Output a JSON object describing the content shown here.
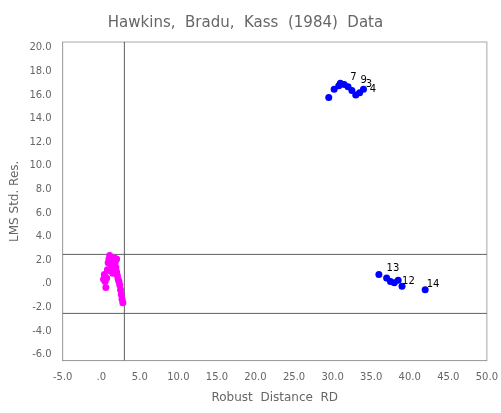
{
  "chart_data": {
    "type": "scatter",
    "title": "Hawkins,  Bradu,  Kass  (1984)  Data",
    "xlabel": "Robust  Distance  RD",
    "ylabel": "LMS Std. Res.",
    "grid": false,
    "xlim": [
      -5,
      50
    ],
    "ylim": [
      -6.5,
      20.5
    ],
    "xticks": [
      {
        "value": -5.0,
        "label": "-5.0"
      },
      {
        "value": 0.0,
        "label": ".0"
      },
      {
        "value": 5.0,
        "label": "5.0"
      },
      {
        "value": 10.0,
        "label": "10.0"
      },
      {
        "value": 15.0,
        "label": "15.0"
      },
      {
        "value": 20.0,
        "label": "20.0"
      },
      {
        "value": 25.0,
        "label": "25.0"
      },
      {
        "value": 30.0,
        "label": "30.0"
      },
      {
        "value": 35.0,
        "label": "35.0"
      },
      {
        "value": 40.0,
        "label": "40.0"
      },
      {
        "value": 45.0,
        "label": "45.0"
      },
      {
        "value": 50.0,
        "label": "50.0"
      }
    ],
    "yticks": [
      {
        "value": -6.0,
        "label": "-6.0"
      },
      {
        "value": -4.0,
        "label": "-4.0"
      },
      {
        "value": -2.0,
        "label": "-2.0"
      },
      {
        "value": 0.0,
        "label": ".0"
      },
      {
        "value": 2.0,
        "label": "2.0"
      },
      {
        "value": 4.0,
        "label": "4.0"
      },
      {
        "value": 6.0,
        "label": "6.0"
      },
      {
        "value": 8.0,
        "label": "8.0"
      },
      {
        "value": 10.0,
        "label": "10.0"
      },
      {
        "value": 12.0,
        "label": "12.0"
      },
      {
        "value": 14.0,
        "label": "14.0"
      },
      {
        "value": 16.0,
        "label": "16.0"
      },
      {
        "value": 18.0,
        "label": "18.0"
      },
      {
        "value": 20.0,
        "label": "20.0"
      }
    ],
    "series": [
      {
        "color": "#FF00FF",
        "x": [
          0.5,
          0.7,
          0.8,
          0.9,
          1.0,
          1.1,
          1.2,
          1.3,
          1.4,
          1.5,
          1.6,
          1.7,
          1.8,
          1.9,
          2.0,
          2.1,
          2.2,
          2.3,
          2.4,
          2.5,
          2.6,
          2.7,
          2.8,
          0.6,
          1.5,
          1.2,
          0.4,
          0.3,
          2.0
        ],
        "values": [
          0.2,
          0.5,
          1.2,
          1.8,
          2.1,
          2.4,
          2.0,
          1.5,
          1.3,
          1.6,
          1.9,
          2.2,
          1.8,
          1.4,
          1.0,
          0.7,
          0.4,
          0.2,
          -0.1,
          -0.5,
          -0.9,
          -1.3,
          -1.6,
          -0.3,
          0.9,
          1.1,
          0.8,
          0.4,
          2.1
        ]
      },
      {
        "color": "#0000FF",
        "x": [
          29.5,
          30.2,
          30.8,
          31.0,
          31.5,
          32.0,
          32.5,
          33.0,
          33.5,
          34.0
        ],
        "values": [
          15.8,
          16.5,
          16.8,
          17.0,
          16.9,
          16.7,
          16.4,
          16.0,
          16.2,
          16.5
        ]
      },
      {
        "color": "#0000FF",
        "x": [
          36.0,
          37.0,
          37.5,
          38.0,
          38.5,
          39.0,
          42.0
        ],
        "values": [
          0.8,
          0.5,
          0.2,
          0.1,
          0.3,
          -0.2,
          -0.5
        ]
      }
    ],
    "reference_lines": [
      {
        "x": 3.0,
        "color": "#606060"
      },
      {
        "y": 2.5,
        "color": "#606060"
      },
      {
        "y": -2.5,
        "color": "#606060"
      }
    ],
    "annotations": [
      {
        "text": "7",
        "x": 32.3,
        "y": 17.3
      },
      {
        "text": "9",
        "x": 33.6,
        "y": 17.0
      },
      {
        "text": "3",
        "x": 34.3,
        "y": 16.7
      },
      {
        "text": "4",
        "x": 34.8,
        "y": 16.3
      },
      {
        "text": "13",
        "x": 37.0,
        "y": 1.1
      },
      {
        "text": "12",
        "x": 39.0,
        "y": 0.0
      },
      {
        "text": "14",
        "x": 42.2,
        "y": -0.3
      }
    ]
  }
}
